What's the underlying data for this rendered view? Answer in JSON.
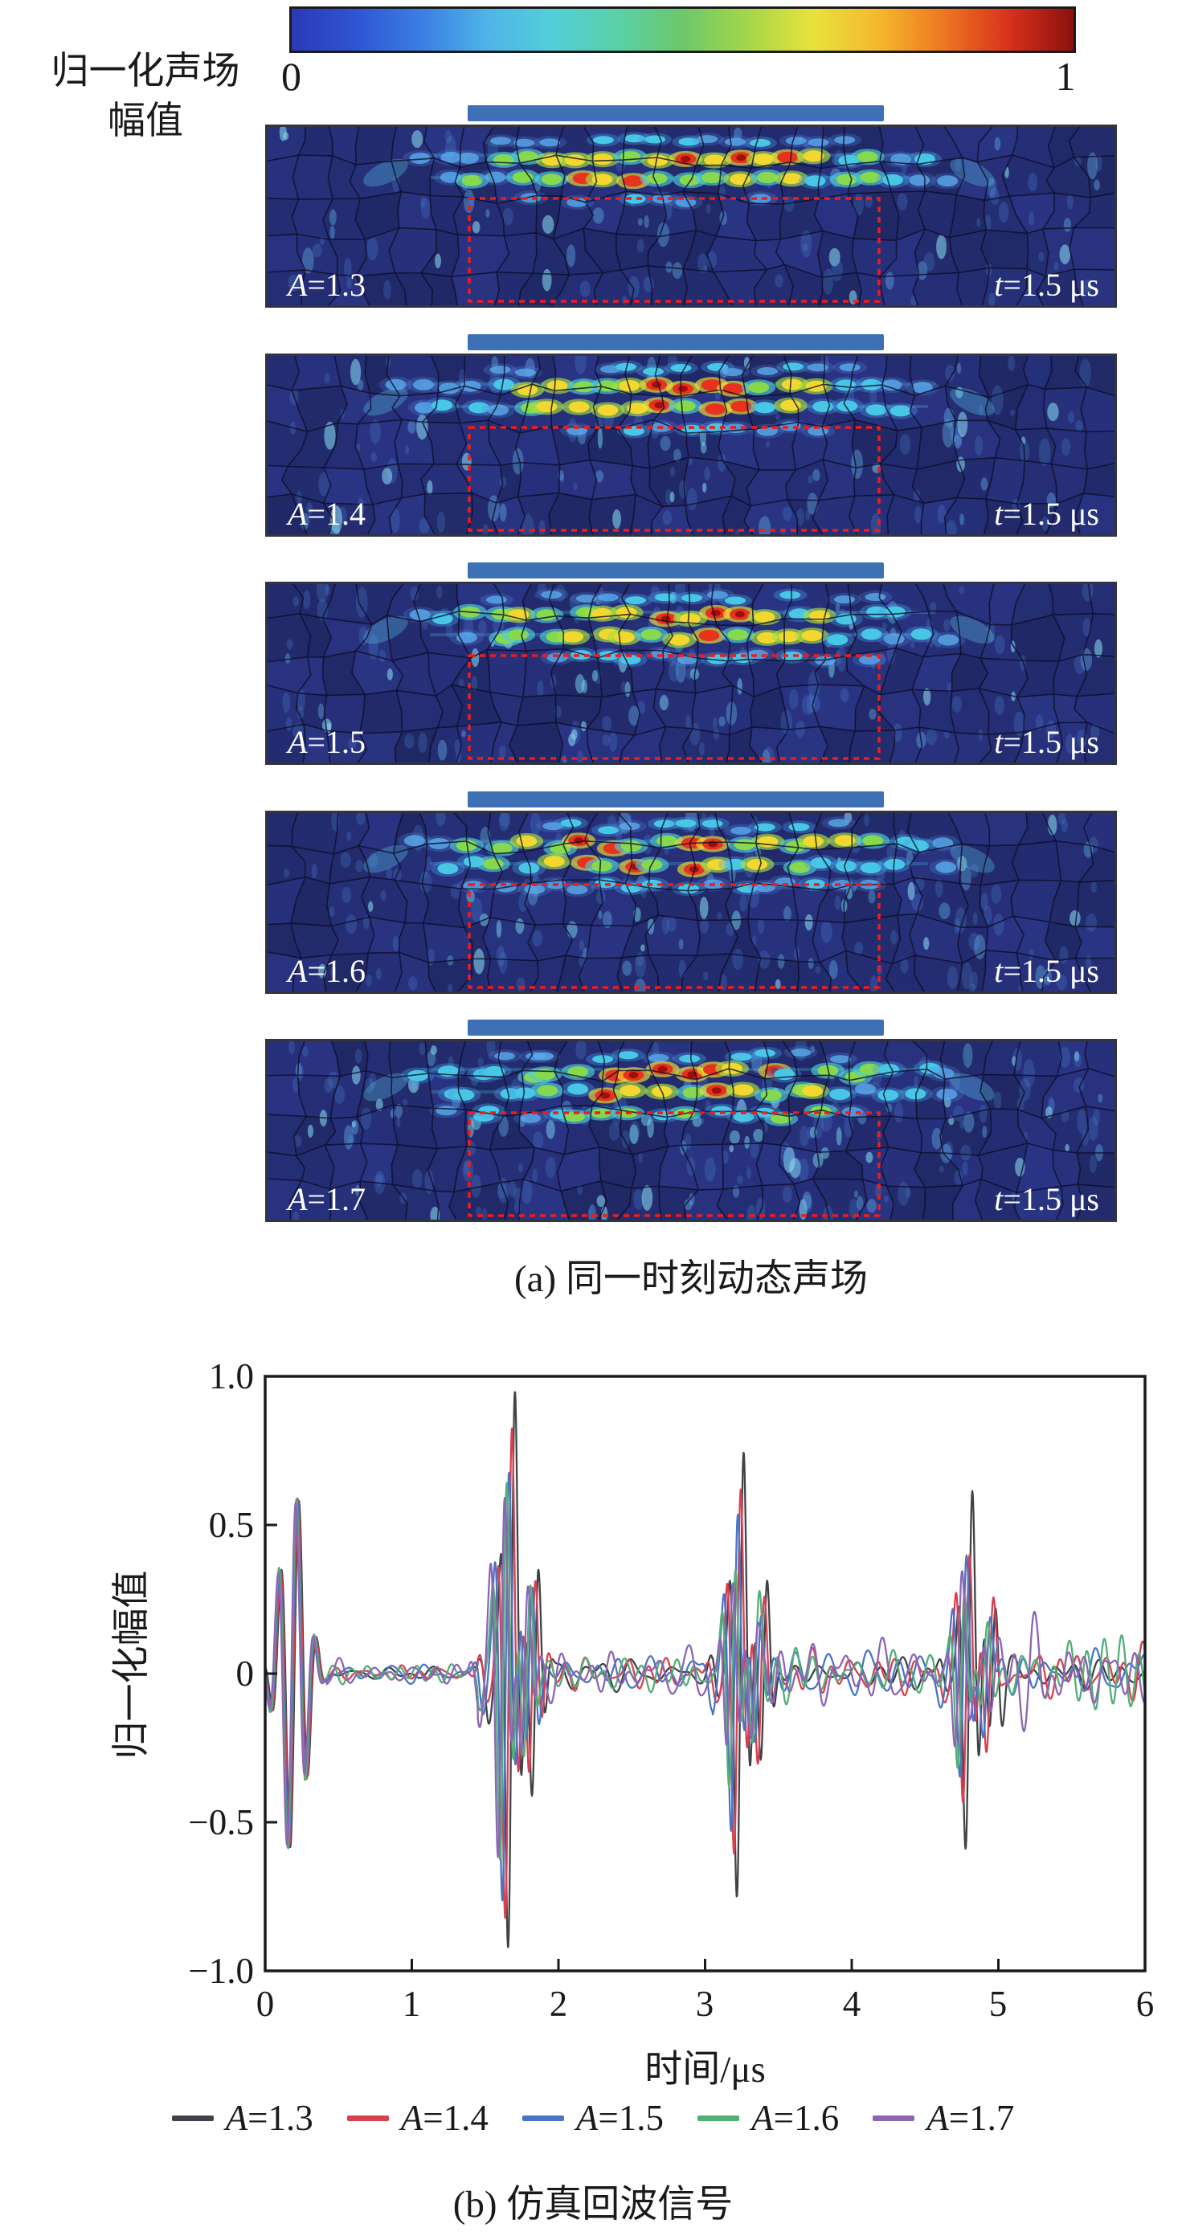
{
  "colorbar": {
    "label_line1": "归一化声场",
    "label_line2": "幅值",
    "tick_min": "0",
    "tick_max": "1",
    "gradient": [
      "#2b3ab5",
      "#2f55d4",
      "#3b7ee2",
      "#4fb4e8",
      "#52cfd8",
      "#5ad0a8",
      "#6cc86a",
      "#a4d64a",
      "#e8e23c",
      "#f5b82e",
      "#ee7721",
      "#d8321c",
      "#8c1010"
    ]
  },
  "panels": {
    "transducer_color": "#3d70b5",
    "background_color": "#1d2767",
    "defect_box_color": "#ee1c1c",
    "items": [
      {
        "a_var": "A",
        "a_val": "=1.3",
        "t_var": "t",
        "t_val": "=1.5 μs",
        "seed": 11,
        "scatter": 0.0
      },
      {
        "a_var": "A",
        "a_val": "=1.4",
        "t_var": "t",
        "t_val": "=1.5 μs",
        "seed": 23,
        "scatter": 0.15
      },
      {
        "a_var": "A",
        "a_val": "=1.5",
        "t_var": "t",
        "t_val": "=1.5 μs",
        "seed": 37,
        "scatter": 0.3
      },
      {
        "a_var": "A",
        "a_val": "=1.6",
        "t_var": "t",
        "t_val": "=1.5 μs",
        "seed": 49,
        "scatter": 0.4
      },
      {
        "a_var": "A",
        "a_val": "=1.7",
        "t_var": "t",
        "t_val": "=1.5 μs",
        "seed": 58,
        "scatter": 0.55
      }
    ]
  },
  "captions": {
    "a": "(a) 同一时刻动态声场",
    "b": "(b) 仿真回波信号"
  },
  "legend": {
    "items": [
      {
        "var": "A",
        "val": "=1.3",
        "color": "#3f4347"
      },
      {
        "var": "A",
        "val": "=1.4",
        "color": "#d8404f"
      },
      {
        "var": "A",
        "val": "=1.5",
        "color": "#4a74c4"
      },
      {
        "var": "A",
        "val": "=1.6",
        "color": "#53ae78"
      },
      {
        "var": "A",
        "val": "=1.7",
        "color": "#8e64b4"
      }
    ]
  },
  "chart_data": {
    "type": "line",
    "title": "",
    "xlabel": "时间/μs",
    "ylabel": "归一化幅值",
    "xlim": [
      0,
      6
    ],
    "ylim": [
      -1.0,
      1.0
    ],
    "xticklabels": [
      "0",
      "1",
      "2",
      "3",
      "4",
      "5",
      "6"
    ],
    "yticklabels": [
      "1.0",
      "0.5",
      "0",
      "−0.5",
      "−1.0"
    ],
    "grid": false,
    "legend_position": "below",
    "series": [
      {
        "name": "A=1.3",
        "color": "#3f4347",
        "echo_amps": [
          1.0,
          0.82,
          0.67
        ],
        "time_shift": 0.0,
        "noise_scale": 0.75,
        "seed": 101
      },
      {
        "name": "A=1.4",
        "color": "#d8404f",
        "echo_amps": [
          0.92,
          0.72,
          0.52
        ],
        "time_shift": -0.02,
        "noise_scale": 0.9,
        "seed": 102
      },
      {
        "name": "A=1.5",
        "color": "#4a74c4",
        "echo_amps": [
          0.8,
          0.57,
          0.4
        ],
        "time_shift": -0.04,
        "noise_scale": 1.15,
        "seed": 103
      },
      {
        "name": "A=1.6",
        "color": "#53ae78",
        "echo_amps": [
          0.72,
          0.47,
          0.3
        ],
        "time_shift": -0.055,
        "noise_scale": 1.05,
        "seed": 104
      },
      {
        "name": "A=1.7",
        "color": "#8e64b4",
        "echo_amps": [
          0.64,
          0.37,
          0.24
        ],
        "time_shift": -0.07,
        "noise_scale": 1.3,
        "seed": 105
      }
    ],
    "synthesis": {
      "initial_pulse": {
        "t": 0.2,
        "amp": 0.62,
        "freq": 8,
        "sigma": 0.085
      },
      "echo_times": [
        1.68,
        3.24,
        4.8
      ],
      "echo_freq": 10,
      "echo_sigma": 0.055,
      "secondary_offset": 0.16,
      "secondary_ratio": 0.42,
      "pre_offset": -0.13,
      "pre_ratio": 0.15
    }
  }
}
